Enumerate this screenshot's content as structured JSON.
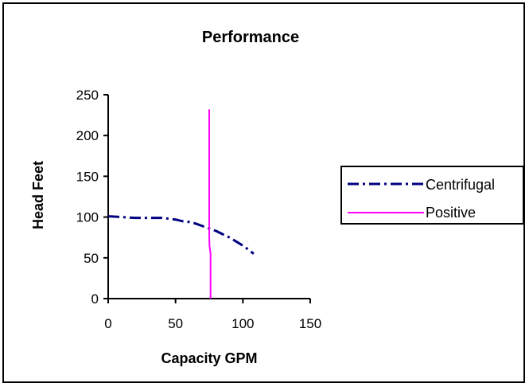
{
  "chart_data": {
    "type": "line",
    "title": "Performance",
    "xlabel": "Capacity GPM",
    "ylabel": "Head Feet",
    "xlim": [
      0,
      150
    ],
    "ylim": [
      0,
      250
    ],
    "x_ticks": [
      "0",
      "50",
      "100",
      "150"
    ],
    "y_ticks": [
      "0",
      "50",
      "100",
      "150",
      "200",
      "250"
    ],
    "grid": false,
    "legend_position": "right",
    "series": [
      {
        "name": "Centrifugal",
        "color": "#000080",
        "line_style": "dash-dot",
        "x": [
          0,
          10,
          20,
          30,
          40,
          45,
          50,
          55,
          60,
          65,
          70,
          75,
          80,
          85,
          90,
          95,
          100,
          105,
          108
        ],
        "y": [
          101,
          100,
          99,
          99,
          99,
          98,
          97,
          95,
          94,
          92,
          89,
          86,
          83,
          79,
          75,
          70,
          65,
          59,
          55
        ]
      },
      {
        "name": "Positive",
        "color": "#ff00ff",
        "line_style": "solid",
        "x": [
          75,
          75,
          75,
          75.2,
          75.6,
          76,
          76
        ],
        "y": [
          232,
          150,
          80,
          65,
          60,
          55,
          0
        ]
      }
    ]
  }
}
